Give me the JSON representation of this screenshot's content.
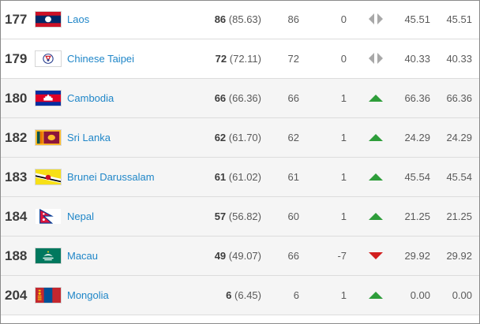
{
  "colors": {
    "up": "#2e9d3a",
    "down": "#d21f1f",
    "same": "#a8a8a8",
    "link": "#1f86c8"
  },
  "rows": [
    {
      "rank": "177",
      "team": "Laos",
      "flag_icon": "laos-flag-icon",
      "points": "86",
      "points_raw": "(85.63)",
      "prev_points": "86",
      "movement": "0",
      "trend": "same",
      "avg1": "45.51",
      "avg2": "45.51"
    },
    {
      "rank": "179",
      "team": "Chinese Taipei",
      "flag_icon": "chinese-taipei-flag-icon",
      "points": "72",
      "points_raw": "(72.11)",
      "prev_points": "72",
      "movement": "0",
      "trend": "same",
      "avg1": "40.33",
      "avg2": "40.33"
    },
    {
      "rank": "180",
      "team": "Cambodia",
      "flag_icon": "cambodia-flag-icon",
      "points": "66",
      "points_raw": "(66.36)",
      "prev_points": "66",
      "movement": "1",
      "trend": "up",
      "avg1": "66.36",
      "avg2": "66.36"
    },
    {
      "rank": "182",
      "team": "Sri Lanka",
      "flag_icon": "sri-lanka-flag-icon",
      "points": "62",
      "points_raw": "(61.70)",
      "prev_points": "62",
      "movement": "1",
      "trend": "up",
      "avg1": "24.29",
      "avg2": "24.29"
    },
    {
      "rank": "183",
      "team": "Brunei Darussalam",
      "flag_icon": "brunei-flag-icon",
      "points": "61",
      "points_raw": "(61.02)",
      "prev_points": "61",
      "movement": "1",
      "trend": "up",
      "avg1": "45.54",
      "avg2": "45.54"
    },
    {
      "rank": "184",
      "team": "Nepal",
      "flag_icon": "nepal-flag-icon",
      "points": "57",
      "points_raw": "(56.82)",
      "prev_points": "60",
      "movement": "1",
      "trend": "up",
      "avg1": "21.25",
      "avg2": "21.25"
    },
    {
      "rank": "188",
      "team": "Macau",
      "flag_icon": "macau-flag-icon",
      "points": "49",
      "points_raw": "(49.07)",
      "prev_points": "66",
      "movement": "-7",
      "trend": "down",
      "avg1": "29.92",
      "avg2": "29.92"
    },
    {
      "rank": "204",
      "team": "Mongolia",
      "flag_icon": "mongolia-flag-icon",
      "points": "6",
      "points_raw": "(6.45)",
      "prev_points": "6",
      "movement": "1",
      "trend": "up",
      "avg1": "0.00",
      "avg2": "0.00"
    }
  ]
}
